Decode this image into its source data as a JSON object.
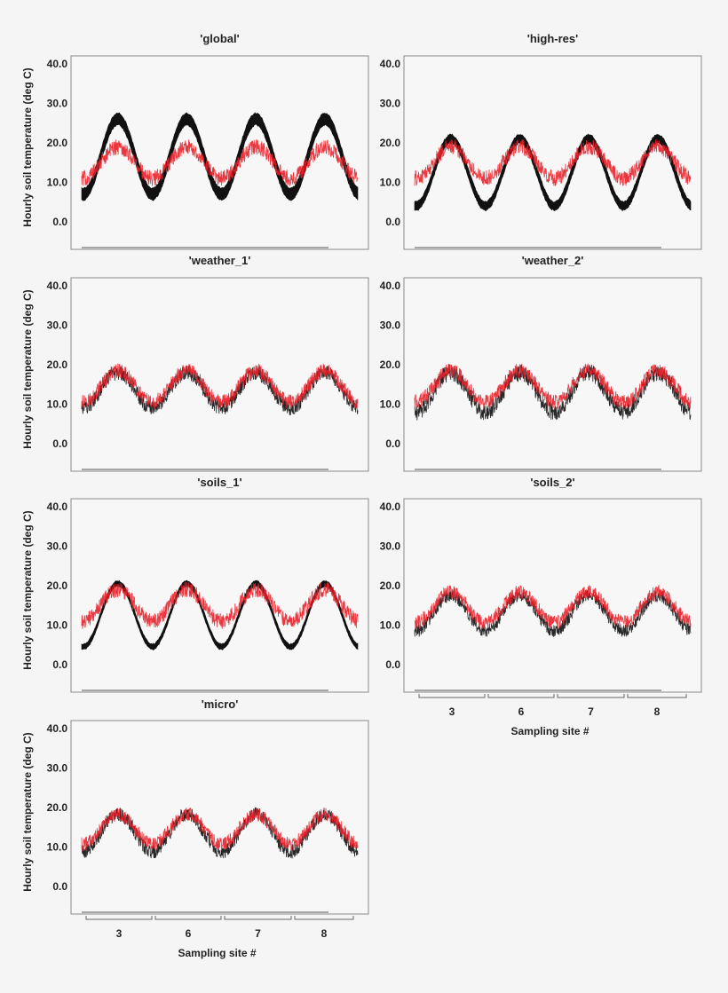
{
  "chart_data": [
    {
      "type": "line",
      "title": "'global'",
      "ylabel": "Hourly soil temperature (deg C)",
      "ylim": [
        -7,
        42
      ],
      "yticks": [
        "40.0",
        "30.0",
        "20.0",
        "10.0",
        "0.0"
      ],
      "grid": false,
      "series": [
        {
          "name": "",
          "color": "#111111",
          "style": "band",
          "mean": 16.5,
          "amp": 9.5,
          "band": 3.0,
          "noise": 0.4
        },
        {
          "name": "",
          "color": "#e8212a",
          "style": "noisy",
          "mean": 15.0,
          "amp": 4.0,
          "noise": 2.0
        }
      ]
    },
    {
      "type": "line",
      "title": "'high-res'",
      "ylabel": "",
      "ylim": [
        -7,
        42
      ],
      "yticks": [
        "40.0",
        "30.0",
        "20.0",
        "10.0",
        "0.0"
      ],
      "grid": false,
      "series": [
        {
          "name": "",
          "color": "#111111",
          "style": "band",
          "mean": 12.5,
          "amp": 8.5,
          "band": 2.2,
          "noise": 0.4
        },
        {
          "name": "",
          "color": "#e8212a",
          "style": "noisy",
          "mean": 15.0,
          "amp": 4.0,
          "noise": 2.0
        }
      ]
    },
    {
      "type": "line",
      "title": "'weather_1'",
      "ylabel": "Hourly soil temperature (deg C)",
      "ylim": [
        -7,
        42
      ],
      "yticks": [
        "40.0",
        "30.0",
        "20.0",
        "10.0",
        "0.0"
      ],
      "grid": false,
      "series": [
        {
          "name": "",
          "color": "#111111",
          "style": "noisy",
          "mean": 13.5,
          "amp": 4.5,
          "noise": 1.9
        },
        {
          "name": "",
          "color": "#e8212a",
          "style": "noisy",
          "mean": 14.5,
          "amp": 4.0,
          "noise": 1.9
        }
      ]
    },
    {
      "type": "line",
      "title": "'weather_2'",
      "ylabel": "",
      "ylim": [
        -7,
        42
      ],
      "yticks": [
        "40.0",
        "30.0",
        "20.0",
        "10.0",
        "0.0"
      ],
      "grid": false,
      "series": [
        {
          "name": "",
          "color": "#111111",
          "style": "noisy",
          "mean": 13.0,
          "amp": 5.0,
          "noise": 2.2
        },
        {
          "name": "",
          "color": "#e8212a",
          "style": "noisy",
          "mean": 14.5,
          "amp": 4.0,
          "noise": 1.9
        }
      ]
    },
    {
      "type": "line",
      "title": "'soils_1'",
      "ylabel": "Hourly soil temperature (deg C)",
      "ylim": [
        -7,
        42
      ],
      "yticks": [
        "40.0",
        "30.0",
        "20.0",
        "10.0",
        "0.0"
      ],
      "grid": false,
      "series": [
        {
          "name": "",
          "color": "#111111",
          "style": "band",
          "mean": 12.5,
          "amp": 8.0,
          "band": 1.4,
          "noise": 0.3
        },
        {
          "name": "",
          "color": "#e8212a",
          "style": "noisy",
          "mean": 15.0,
          "amp": 4.0,
          "noise": 2.0
        }
      ]
    },
    {
      "type": "line",
      "title": "'soils_2'",
      "ylabel": "",
      "ylim": [
        -7,
        42
      ],
      "yticks": [
        "40.0",
        "30.0",
        "20.0",
        "10.0",
        "0.0"
      ],
      "grid": false,
      "categories": [
        "3",
        "6",
        "7",
        "8"
      ],
      "xlabel": "Sampling site #",
      "series": [
        {
          "name": "",
          "color": "#111111",
          "style": "noisy",
          "mean": 13.0,
          "amp": 4.5,
          "noise": 1.6
        },
        {
          "name": "",
          "color": "#e8212a",
          "style": "noisy",
          "mean": 14.5,
          "amp": 3.8,
          "noise": 1.8
        }
      ]
    },
    {
      "type": "line",
      "title": "'micro'",
      "ylabel": "Hourly soil temperature (deg C)",
      "ylim": [
        -7,
        42
      ],
      "yticks": [
        "40.0",
        "30.0",
        "20.0",
        "10.0",
        "0.0"
      ],
      "grid": false,
      "categories": [
        "3",
        "6",
        "7",
        "8"
      ],
      "xlabel": "Sampling site #",
      "series": [
        {
          "name": "",
          "color": "#111111",
          "style": "noisy",
          "mean": 13.5,
          "amp": 4.8,
          "noise": 1.8
        },
        {
          "name": "",
          "color": "#e8212a",
          "style": "noisy",
          "mean": 14.5,
          "amp": 3.8,
          "noise": 1.8
        }
      ]
    }
  ]
}
